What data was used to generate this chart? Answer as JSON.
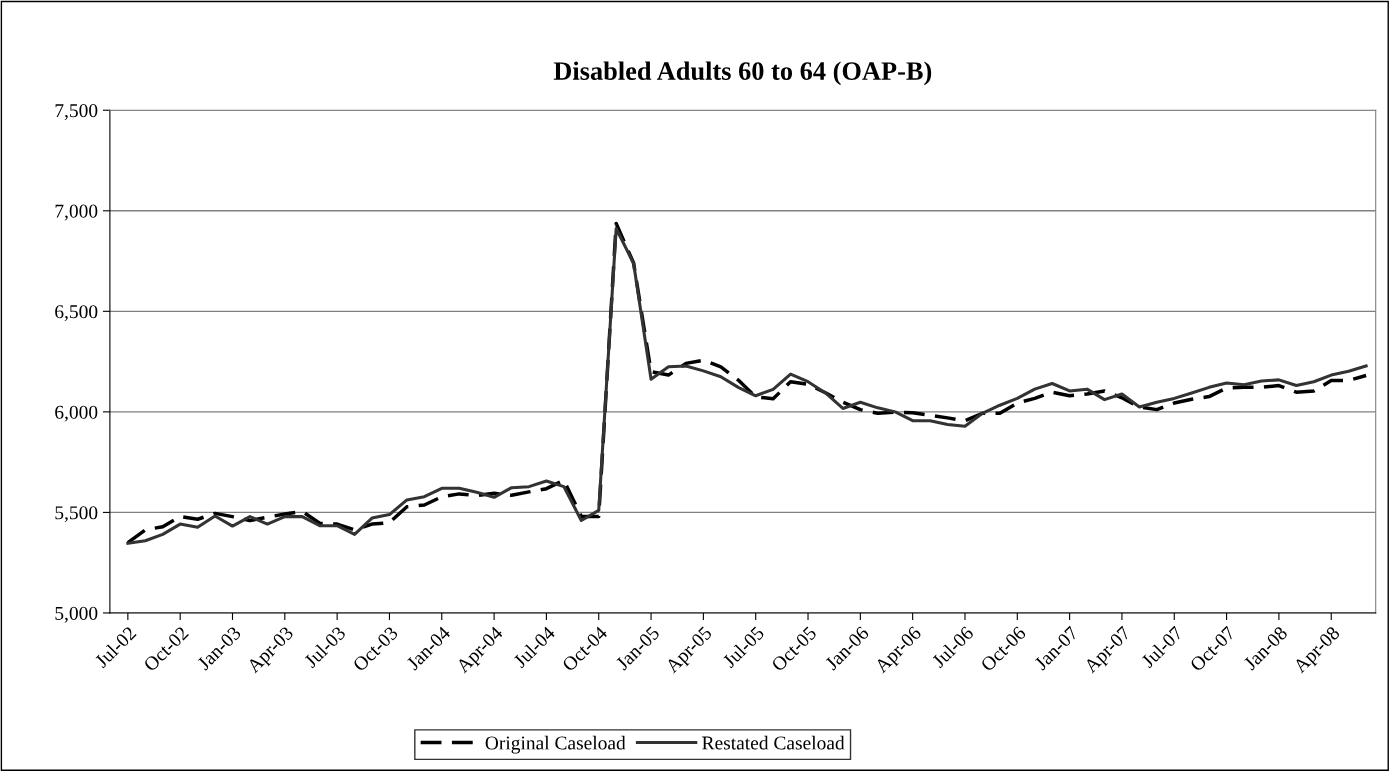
{
  "chart_data": {
    "type": "line",
    "title": "Disabled Adults 60 to 64 (OAP-B)",
    "categories": [
      "Jul-02",
      null,
      null,
      "Oct-02",
      null,
      null,
      "Jan-03",
      null,
      null,
      "Apr-03",
      null,
      null,
      "Jul-03",
      null,
      null,
      "Oct-03",
      null,
      null,
      "Jan-04",
      null,
      null,
      "Apr-04",
      null,
      null,
      "Jul-04",
      null,
      null,
      "Oct-04",
      null,
      null,
      "Jan-05",
      null,
      null,
      "Apr-05",
      null,
      null,
      "Jul-05",
      null,
      null,
      "Oct-05",
      null,
      null,
      "Jan-06",
      null,
      null,
      "Apr-06",
      null,
      null,
      "Jul-06",
      null,
      null,
      "Oct-06",
      null,
      null,
      "Jan-07",
      null,
      null,
      "Apr-07",
      null,
      null,
      "Jul-07",
      null,
      null,
      "Oct-07",
      null,
      null,
      "Jan-08",
      null,
      null,
      "Apr-08",
      null,
      null
    ],
    "series": [
      {
        "name": "Original Caseload",
        "color": "#000000",
        "line_style": "dashed",
        "values": [
          5350,
          5413,
          5429,
          5479,
          5466,
          5495,
          5479,
          5459,
          5476,
          5492,
          5505,
          5446,
          5442,
          5413,
          5442,
          5449,
          5528,
          5537,
          5578,
          5592,
          5584,
          5595,
          5585,
          5602,
          5618,
          5660,
          5480,
          5480,
          6937,
          6740,
          6200,
          6183,
          6241,
          6257,
          6224,
          6158,
          6075,
          6065,
          6150,
          6137,
          6095,
          6048,
          6011,
          5993,
          5998,
          5996,
          5983,
          5970,
          5956,
          5993,
          5993,
          6044,
          6067,
          6098,
          6080,
          6089,
          6104,
          6070,
          6024,
          6011,
          6044,
          6063,
          6076,
          6119,
          6122,
          6122,
          6131,
          6098,
          6104,
          6156,
          6156,
          6181
        ]
      },
      {
        "name": "Restated Caseload",
        "color": "#333333",
        "line_style": "solid",
        "values": [
          5346,
          5359,
          5391,
          5442,
          5426,
          5482,
          5432,
          5479,
          5442,
          5479,
          5479,
          5434,
          5434,
          5391,
          5472,
          5489,
          5562,
          5578,
          5620,
          5620,
          5600,
          5575,
          5623,
          5628,
          5656,
          5628,
          5460,
          5510,
          6912,
          6738,
          6162,
          6224,
          6228,
          6204,
          6175,
          6122,
          6080,
          6112,
          6188,
          6150,
          6094,
          6017,
          6048,
          6020,
          6000,
          5956,
          5956,
          5937,
          5928,
          5993,
          6033,
          6067,
          6113,
          6141,
          6104,
          6113,
          6061,
          6089,
          6024,
          6048,
          6067,
          6094,
          6122,
          6144,
          6135,
          6154,
          6159,
          6131,
          6150,
          6183,
          6202,
          6228
        ]
      }
    ],
    "ylim": [
      5000,
      7500
    ],
    "yticks": [
      {
        "value": 5000,
        "label": "5,000"
      },
      {
        "value": 5500,
        "label": "5,500"
      },
      {
        "value": 6000,
        "label": "6,000"
      },
      {
        "value": 6500,
        "label": "6,500"
      },
      {
        "value": 7000,
        "label": "7,000"
      },
      {
        "value": 7500,
        "label": "7,500"
      }
    ],
    "grid": "y",
    "legend": "bottom",
    "marker": "none"
  }
}
